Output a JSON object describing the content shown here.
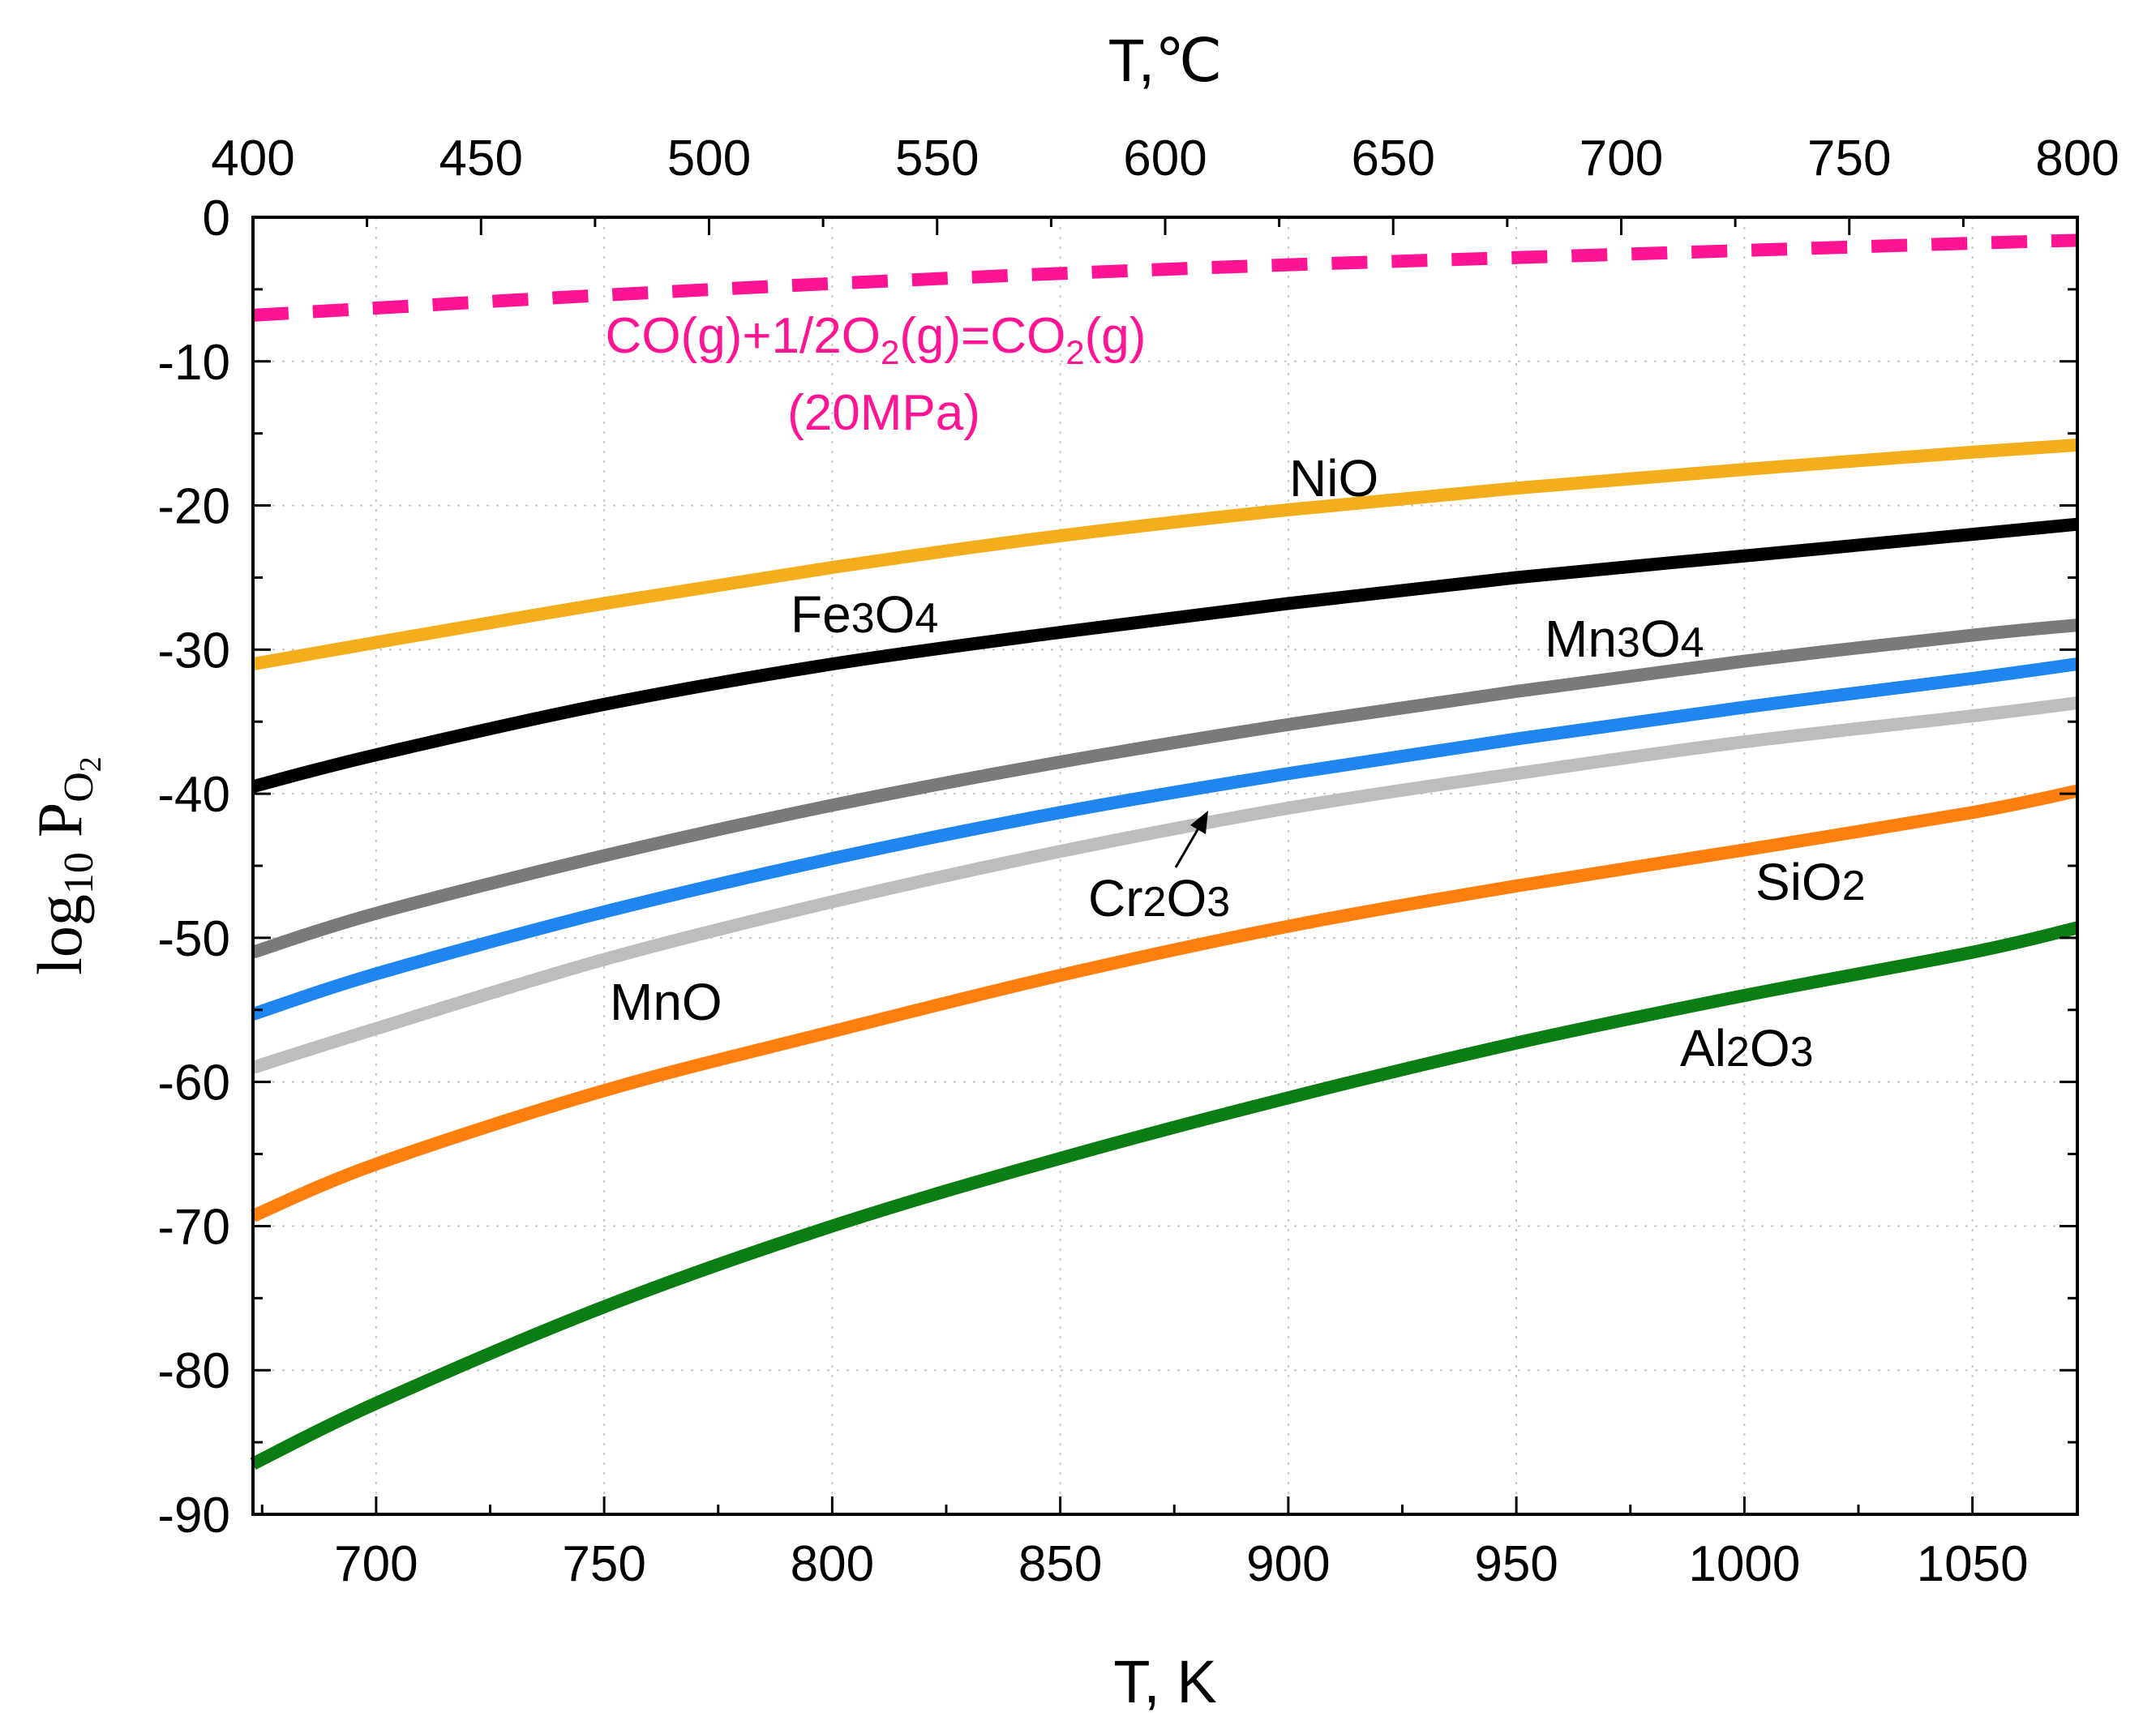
{
  "chart_data": {
    "type": "line",
    "x_unit": "K",
    "xlim": [
      673,
      1073
    ],
    "ylim": [
      -90,
      0
    ],
    "x_ticks": [
      700,
      750,
      800,
      850,
      900,
      950,
      1000,
      1050
    ],
    "y_ticks": [
      0,
      -10,
      -20,
      -30,
      -40,
      -50,
      -60,
      -70,
      -80,
      -90
    ],
    "x_tick_labels": [
      "700",
      "750",
      "800",
      "850",
      "900",
      "950",
      "1000",
      "1050"
    ],
    "y_tick_labels": [
      "0",
      "-10",
      "-20",
      "-30",
      "-40",
      "-50",
      "-60",
      "-70",
      "-80",
      "-90"
    ],
    "top_axis": {
      "title": "T,℃",
      "ticks": [
        400,
        450,
        500,
        550,
        600,
        650,
        700,
        750,
        800
      ],
      "tick_labels": [
        "400",
        "450",
        "500",
        "550",
        "600",
        "650",
        "700",
        "750",
        "800"
      ],
      "offset_K": 273
    },
    "xlabel": "T, K",
    "ylabel": {
      "prefix": "log",
      "sub": "10",
      "main": "P",
      "sub_main": "O",
      "sub_sub": "2"
    },
    "grid": true,
    "series": [
      {
        "name": "CO(g)+1/2O2(g)=CO2(g) (20MPa)",
        "color": "#ff1493",
        "dashed": true,
        "x": [
          673,
          700,
          750,
          800,
          850,
          900,
          950,
          1000,
          1050,
          1073
        ],
        "y": [
          -6.8,
          -6.3,
          -5.4,
          -4.6,
          -3.9,
          -3.3,
          -2.8,
          -2.3,
          -1.8,
          -1.6
        ]
      },
      {
        "name": "NiO",
        "color": "#f2ae1c",
        "x": [
          673,
          700,
          750,
          800,
          850,
          900,
          950,
          1000,
          1050,
          1073
        ],
        "y": [
          -31,
          -29.5,
          -26.8,
          -24.3,
          -22.1,
          -20.3,
          -18.8,
          -17.5,
          -16.3,
          -15.8
        ]
      },
      {
        "name": "Fe3O4",
        "color": "#000000",
        "x": [
          673,
          700,
          750,
          800,
          850,
          900,
          950,
          1000,
          1050,
          1073
        ],
        "y": [
          -39.5,
          -37.3,
          -33.8,
          -31,
          -28.8,
          -26.8,
          -25,
          -23.5,
          -22,
          -21.3
        ]
      },
      {
        "name": "Mn3O4",
        "color": "#7a7a7a",
        "x": [
          673,
          700,
          750,
          800,
          850,
          900,
          950,
          1000,
          1050,
          1073
        ],
        "y": [
          -51,
          -48.3,
          -44.3,
          -40.8,
          -37.8,
          -35.2,
          -32.9,
          -30.8,
          -29,
          -28.3
        ]
      },
      {
        "name": "Cr2O3",
        "color": "#1f86f0",
        "x": [
          673,
          700,
          750,
          800,
          850,
          900,
          950,
          1000,
          1050,
          1073
        ],
        "y": [
          -55.3,
          -52.5,
          -48.2,
          -44.5,
          -41.3,
          -38.6,
          -36.2,
          -34,
          -32,
          -31
        ]
      },
      {
        "name": "MnO",
        "color": "#bdbdbd",
        "x": [
          673,
          700,
          750,
          800,
          850,
          900,
          950,
          1000,
          1050,
          1073
        ],
        "y": [
          -59,
          -56.3,
          -51.5,
          -47.5,
          -44,
          -41,
          -38.6,
          -36.4,
          -34.6,
          -33.7
        ]
      },
      {
        "name": "SiO2",
        "color": "#ff7f0e",
        "x": [
          673,
          700,
          750,
          800,
          850,
          900,
          950,
          1000,
          1050,
          1073
        ],
        "y": [
          -69.3,
          -65.7,
          -60.6,
          -56.5,
          -52.6,
          -49.2,
          -46.4,
          -43.9,
          -41.3,
          -39.8
        ]
      },
      {
        "name": "Al2O3",
        "color": "#0b7d12",
        "x": [
          673,
          700,
          750,
          800,
          850,
          900,
          950,
          1000,
          1050,
          1073
        ],
        "y": [
          -86.5,
          -82.3,
          -75.6,
          -70,
          -65.3,
          -61.1,
          -57.3,
          -54,
          -51,
          -49.3
        ]
      }
    ],
    "labels": [
      {
        "id": "co",
        "line1_parts": [
          "CO(g)+1/2O",
          "2",
          "(g)=CO",
          "2",
          "(g)"
        ],
        "line2": "(20MPa)"
      },
      {
        "id": "nio",
        "parts": [
          "NiO"
        ]
      },
      {
        "id": "fe3o4",
        "parts": [
          "Fe",
          "3",
          "O",
          "4"
        ]
      },
      {
        "id": "mn3o4",
        "parts": [
          "Mn",
          "3",
          "O",
          "4"
        ]
      },
      {
        "id": "cr2o3",
        "parts": [
          "Cr",
          "2",
          "O",
          "3"
        ]
      },
      {
        "id": "mno",
        "parts": [
          "MnO"
        ]
      },
      {
        "id": "sio2",
        "parts": [
          "SiO",
          "2"
        ]
      },
      {
        "id": "al2o3",
        "parts": [
          "Al",
          "2",
          "O",
          "3"
        ]
      }
    ]
  }
}
